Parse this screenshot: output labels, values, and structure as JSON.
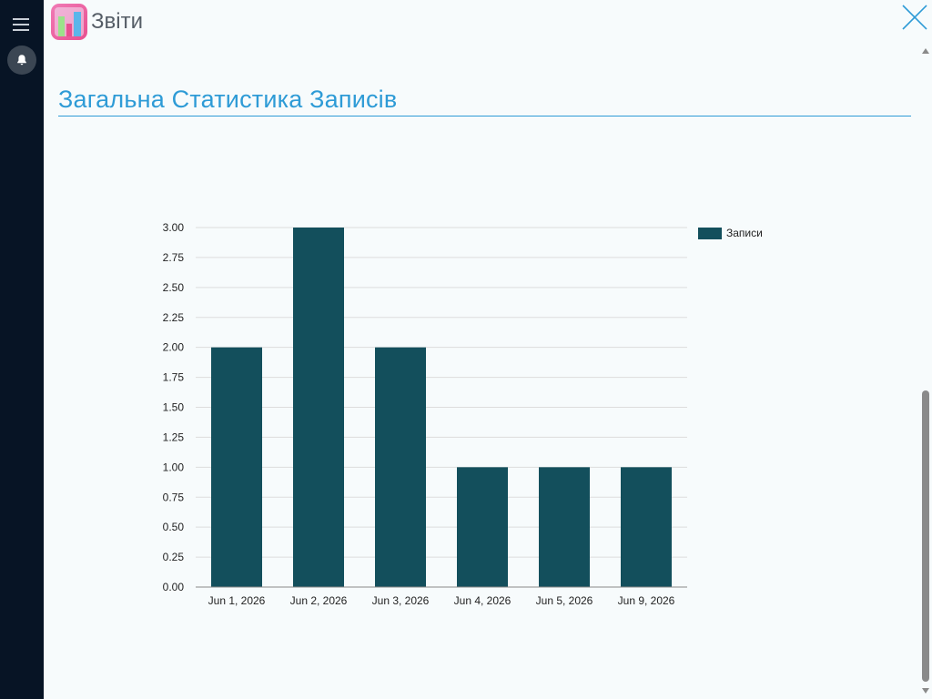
{
  "header": {
    "app_title": "Звіти",
    "app_icon": "reports-chart-icon",
    "menu_icon": "hamburger-menu-icon",
    "notification_icon": "bell-icon",
    "close_icon": "close-icon"
  },
  "page": {
    "title": "Загальна Статистика Записів"
  },
  "colors": {
    "accent": "#2e9bd6",
    "bar": "#134f5c",
    "sidebar": "#071425",
    "background": "#f7fbfc"
  },
  "chart_data": {
    "type": "bar",
    "categories": [
      "Jun 1, 2026",
      "Jun 2, 2026",
      "Jun 3, 2026",
      "Jun 4, 2026",
      "Jun 5, 2026",
      "Jun 9, 2026"
    ],
    "series": [
      {
        "name": "Записи",
        "values": [
          2,
          3,
          2,
          1,
          1,
          1
        ]
      }
    ],
    "yticks": [
      "0.00",
      "0.25",
      "0.50",
      "0.75",
      "1.00",
      "1.25",
      "1.50",
      "1.75",
      "2.00",
      "2.25",
      "2.50",
      "2.75",
      "3.00"
    ],
    "ylim": [
      0,
      3
    ],
    "grid": true,
    "legend_position": "top-right"
  }
}
